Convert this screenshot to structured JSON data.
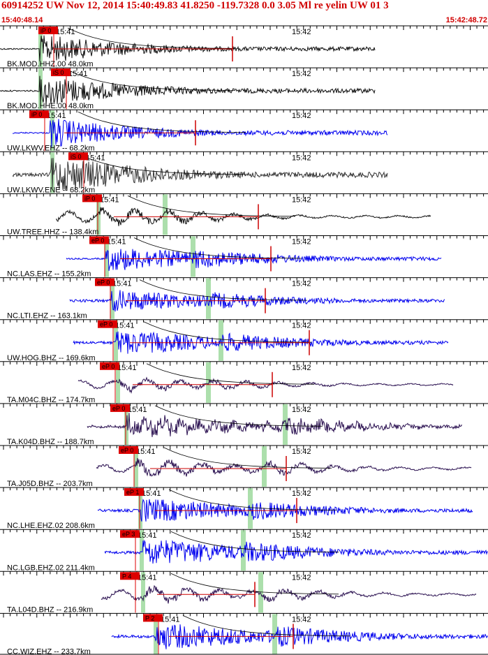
{
  "event": {
    "title": "60914252 UW Nov 12, 2014 15:40:49.83   41.8250 -119.7328  0.0 3.05 Ml re yelin UW 01   3",
    "start_time": "15:40:48.14",
    "end_time": "15:42:48.72"
  },
  "colors": {
    "header_text": "#d00000",
    "pick_box": "#dd0000",
    "coda_line": "#cc0000",
    "blue_trace": "#0000ee",
    "black_trace": "#111111",
    "purple_trace": "#2a1050",
    "gray_trace": "#333333",
    "window_band": "#9dd99d"
  },
  "traces": [
    {
      "label": "BK.MOD.HHZ.00 48.0km",
      "time_label": "15:41",
      "time_label2": "15:42",
      "pick": "iP 0",
      "color": "black",
      "pick_x": 55,
      "start": 0,
      "end": 537,
      "onset": 57,
      "amp": 20,
      "s_arr": 95,
      "mark": 333,
      "band": 55,
      "style": "hf",
      "pre_amp": 1
    },
    {
      "label": "BK.MOD.HHE.00 48.0km",
      "time_label": "15:41",
      "time_label2": "15:42",
      "pick": "iS 0",
      "color": "black",
      "pick_x": 73,
      "start": 0,
      "end": 537,
      "onset": 57,
      "amp": 22,
      "s_arr": 95,
      "mark": null,
      "band": 55,
      "style": "hf",
      "pre_amp": 1
    },
    {
      "label": "UW.LKWV.EHZ -- 68.2km",
      "time_label": "15:41",
      "time_label2": "15:42",
      "pick": "iP 0",
      "color": "blue",
      "pick_x": 42,
      "start": 18,
      "end": 555,
      "onset": 72,
      "amp": 22,
      "s_arr": 100,
      "mark": 280,
      "band": 72,
      "style": "hf",
      "pre_amp": 1
    },
    {
      "label": "UW.LKWV.ENE -- 68.2km",
      "time_label": "15:41",
      "time_label2": "15:42",
      "pick": "iS 0",
      "color": "gray",
      "pick_x": 98,
      "start": 18,
      "end": 555,
      "onset": 72,
      "amp": 26,
      "s_arr": 125,
      "mark": null,
      "band": 72,
      "style": "noise",
      "pre_amp": 5
    },
    {
      "label": "UW.TREE.HHZ -- 138.4km",
      "time_label": "15:41",
      "time_label2": "15:42",
      "pick": "iP 0",
      "color": "black",
      "pick_x": 118,
      "start": 80,
      "end": 617,
      "onset": 143,
      "amp": 18,
      "s_arr": 238,
      "mark": 370,
      "band": 138,
      "style": "lp",
      "pre_amp": 7
    },
    {
      "label": "NC.LAS.EHZ -- 155.2km",
      "time_label": "15:41",
      "time_label2": "15:42",
      "pick": "eP 0",
      "color": "blue",
      "pick_x": 128,
      "start": 95,
      "end": 632,
      "onset": 152,
      "amp": 18,
      "s_arr": 278,
      "mark": 388,
      "band": 150,
      "style": "hf",
      "pre_amp": 1
    },
    {
      "label": "NC.LTI.EHZ -- 163.1km",
      "time_label": "15:41",
      "time_label2": "15:42",
      "pick": "eP 0",
      "color": "blue",
      "pick_x": 136,
      "start": 100,
      "end": 637,
      "onset": 160,
      "amp": 16,
      "s_arr": 300,
      "mark": 380,
      "band": 158,
      "style": "hf",
      "pre_amp": 2
    },
    {
      "label": "UW.HOG.BHZ -- 169.6km",
      "time_label": "15:41",
      "time_label2": "15:42",
      "pick": "eP 0",
      "color": "blue",
      "pick_x": 140,
      "start": 105,
      "end": 642,
      "onset": 166,
      "amp": 18,
      "s_arr": 318,
      "mark": 443,
      "band": 163,
      "style": "hf",
      "pre_amp": 2
    },
    {
      "label": "TA.M04C.BHZ -- 174.7km",
      "time_label": "15:41",
      "time_label2": "15:42",
      "pick": "eP 0",
      "color": "purple",
      "pick_x": 143,
      "start": 112,
      "end": 649,
      "onset": 170,
      "amp": 14,
      "s_arr": 300,
      "mark": 390,
      "band": 166,
      "style": "lp",
      "pre_amp": 5
    },
    {
      "label": "TA.K04D.BHZ -- 188.7km",
      "time_label": "15:41",
      "time_label2": "15:42",
      "pick": "eP 0",
      "color": "purple",
      "pick_x": 158,
      "start": 125,
      "end": 662,
      "onset": 182,
      "amp": 18,
      "s_arr": 410,
      "mark": null,
      "band": 178,
      "style": "mp",
      "pre_amp": 2
    },
    {
      "label": "TA.J05D.BHZ -- 203.7km",
      "time_label": "15:41",
      "time_label2": "15:42",
      "pick": "eP 0",
      "color": "purple",
      "pick_x": 170,
      "start": 138,
      "end": 675,
      "onset": 195,
      "amp": 18,
      "s_arr": 380,
      "mark": 410,
      "band": 192,
      "style": "lp",
      "pre_amp": 5
    },
    {
      "label": "NC.LHE.EHZ.02 208.6km",
      "time_label": "15:41",
      "time_label2": "15:42",
      "pick": "eP 1",
      "color": "blue",
      "pick_x": 178,
      "start": 140,
      "end": 677,
      "onset": 202,
      "amp": 18,
      "s_arr": 360,
      "mark": 425,
      "band": 198,
      "style": "hf",
      "pre_amp": 2
    },
    {
      "label": "NC.LGB.EHZ.02 211.4km",
      "time_label": "15:41",
      "time_label2": "15:42",
      "pick": "eP 3",
      "color": "blue",
      "pick_x": 172,
      "start": 150,
      "end": 699,
      "onset": 205,
      "amp": 20,
      "s_arr": 350,
      "mark": null,
      "band": 200,
      "style": "hf",
      "pre_amp": 2
    },
    {
      "label": "TA.L04D.BHZ -- 216.9km",
      "time_label": "15:41",
      "time_label2": "15:42",
      "pick": "P 4",
      "color": "purple",
      "pick_x": 172,
      "start": 145,
      "end": 682,
      "onset": 205,
      "amp": 18,
      "s_arr": 375,
      "mark": 365,
      "band": 202,
      "style": "lp",
      "pre_amp": 6
    },
    {
      "label": "CC.WIZ.EHZ -- 233.7km",
      "time_label": "15:41",
      "time_label2": "15:42",
      "pick": "P 2",
      "color": "blue",
      "pick_x": 205,
      "start": 160,
      "end": 699,
      "onset": 222,
      "amp": 20,
      "s_arr": 395,
      "mark": 420,
      "band": 220,
      "style": "hf",
      "pre_amp": 2
    }
  ]
}
